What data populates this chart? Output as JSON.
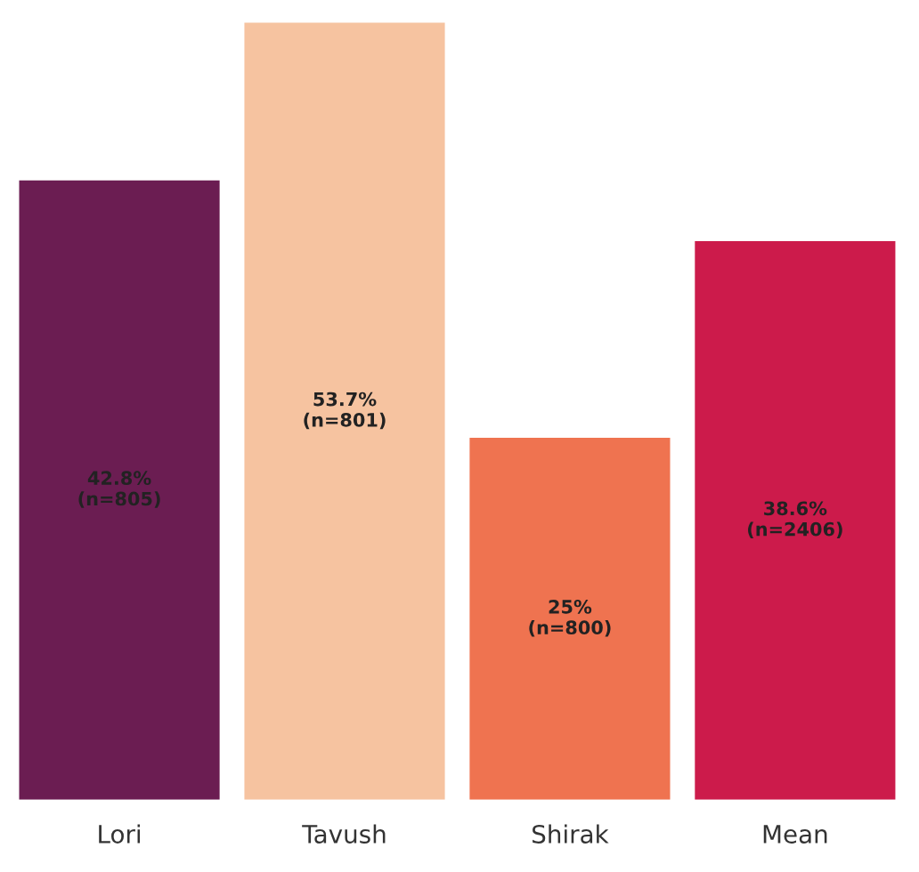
{
  "chart_data": {
    "type": "bar",
    "categories": [
      "Lori",
      "Tavush",
      "Shirak",
      "Mean"
    ],
    "values": [
      42.8,
      53.7,
      25,
      38.6
    ],
    "colors": [
      "#6b1d52",
      "#f6c3a0",
      "#ef7350",
      "#cc1b4b"
    ],
    "value_labels": [
      "42.8%\n(n=805)",
      "53.7%\n(n=801)",
      "25%\n(n=800)",
      "38.6%\n(n=2406)"
    ],
    "grid": false,
    "legend": false
  }
}
